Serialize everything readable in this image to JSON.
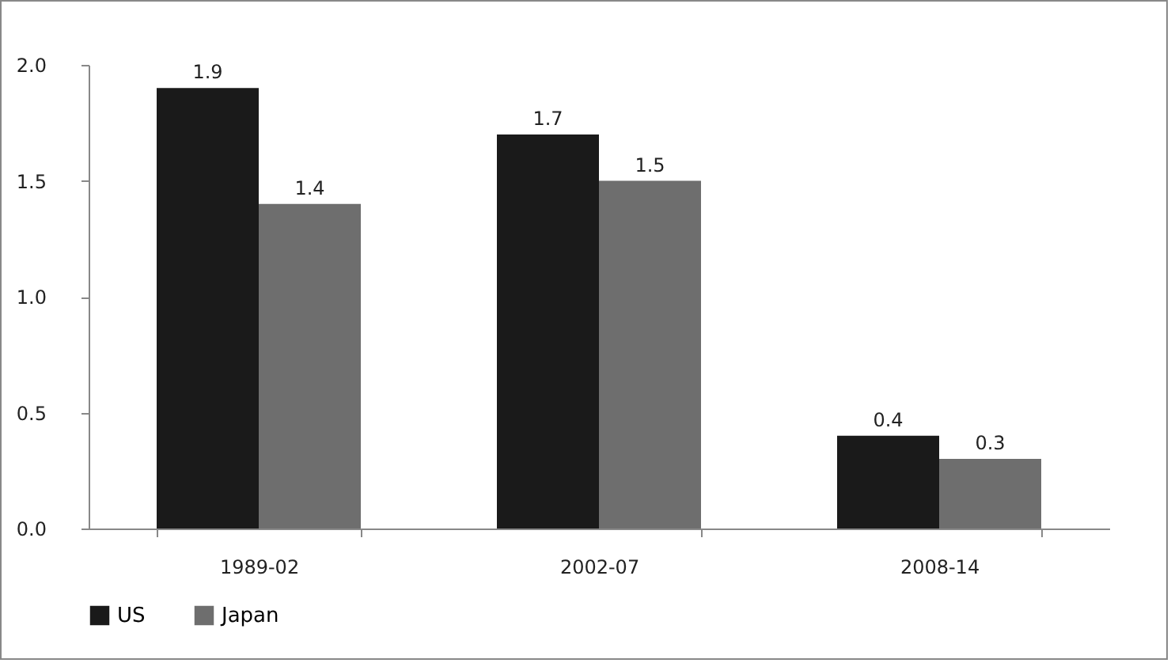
{
  "chart_data": {
    "type": "bar",
    "categories": [
      "1989-02",
      "2002-07",
      "2008-14"
    ],
    "series": [
      {
        "name": "US",
        "color": "#1a1a1a",
        "values": [
          1.9,
          1.7,
          0.4
        ]
      },
      {
        "name": "Japan",
        "color": "#6e6e6e",
        "values": [
          1.4,
          1.5,
          0.3
        ]
      }
    ],
    "ylim": [
      0,
      2
    ],
    "yticks": [
      {
        "value": 0,
        "label": "0.0"
      },
      {
        "value": 0.5,
        "label": "0.5"
      },
      {
        "value": 1,
        "label": "1.0"
      },
      {
        "value": 1.5,
        "label": "1.5"
      },
      {
        "value": 2,
        "label": "2.0"
      }
    ],
    "data_labels": true,
    "grid": false,
    "legend": "bottom"
  }
}
